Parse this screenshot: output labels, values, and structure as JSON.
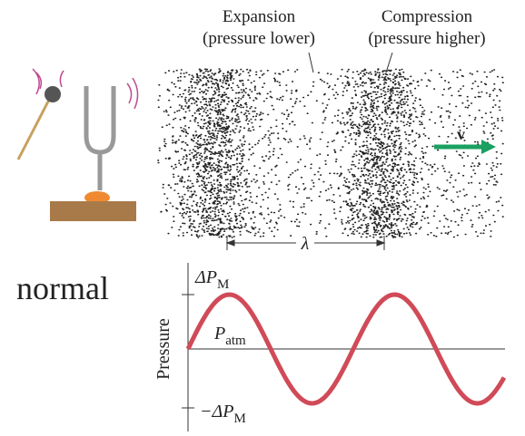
{
  "labels": {
    "expansion": "Expansion",
    "expansion_note": "(pressure lower)",
    "compression": "Compression",
    "compression_note": "(pressure higher)",
    "velocity": "v",
    "wavelength": "λ",
    "caption": "normal"
  },
  "graph": {
    "axis_label": "Pressure",
    "max": {
      "main": "ΔP",
      "sub": "M"
    },
    "atm": {
      "main": "P",
      "sub": "atm"
    },
    "min": {
      "main": "−ΔP",
      "sub": "M"
    }
  }
}
